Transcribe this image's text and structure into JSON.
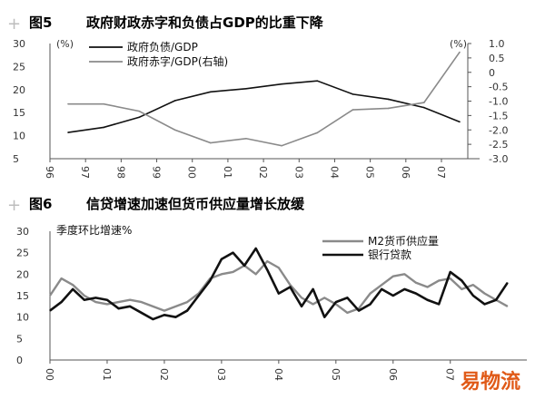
{
  "colors": {
    "black_series": "#111111",
    "gray_series": "#8a8a8a",
    "axis": "#555555",
    "watermark": "#e05a18",
    "plus_mark": "#bdbdbd"
  },
  "chart_data": [
    {
      "type": "line",
      "figure_no": "图5",
      "title": "政府财政赤字和负债占GDP的比重下降",
      "left_unit": "(%)",
      "right_unit": "(%)",
      "ylim": [
        5,
        30
      ],
      "yticks": [
        "5",
        "10",
        "15",
        "20",
        "25",
        "30"
      ],
      "y2lim": [
        -3.0,
        1.0
      ],
      "y2ticks": [
        "-3.0",
        "-2.5",
        "-2.0",
        "-1.5",
        "-1.0",
        "-0.5",
        "0",
        "0.5",
        "1.0"
      ],
      "x": [
        "96",
        "97",
        "98",
        "99",
        "00",
        "01",
        "02",
        "03",
        "04",
        "05",
        "06",
        "07"
      ],
      "xticks": [
        "96",
        "97",
        "98",
        "99",
        "00",
        "01",
        "02",
        "03",
        "04",
        "05",
        "06",
        "07"
      ],
      "legend_position": "top-left",
      "series": [
        {
          "name": "政府负债/GDP",
          "axis": "left",
          "color": "#111111",
          "values": [
            10.7,
            11.8,
            14.0,
            17.6,
            19.5,
            20.2,
            21.2,
            21.9,
            19.0,
            17.9,
            16.1,
            13.0
          ]
        },
        {
          "name": "政府赤字/GDP(右轴)",
          "axis": "right",
          "color": "#8a8a8a",
          "values": [
            -1.1,
            -1.1,
            -1.35,
            -2.0,
            -2.45,
            -2.3,
            -2.55,
            -2.1,
            -1.3,
            -1.25,
            -1.05,
            0.7
          ]
        }
      ]
    },
    {
      "type": "line",
      "figure_no": "图6",
      "title": "信贷增速加速但货币供应量增长放缓",
      "ylabel": "季度环比增速%",
      "ylim": [
        0,
        30
      ],
      "yticks": [
        "0",
        "5",
        "10",
        "15",
        "20",
        "25",
        "30"
      ],
      "xlim": [
        2000,
        2008.1
      ],
      "xticks": [
        "00",
        "01",
        "02",
        "03",
        "04",
        "05",
        "06",
        "07"
      ],
      "xtick_positions": [
        2000,
        2001,
        2002,
        2003,
        2004,
        2005,
        2006,
        2007
      ],
      "legend_position": "top-right",
      "series": [
        {
          "name": "M2货币供应量",
          "color": "#8a8a8a",
          "x": [
            2000.0,
            2000.2,
            2000.4,
            2000.6,
            2000.8,
            2001.0,
            2001.2,
            2001.4,
            2001.6,
            2001.8,
            2002.0,
            2002.2,
            2002.4,
            2002.6,
            2002.8,
            2003.0,
            2003.2,
            2003.4,
            2003.6,
            2003.8,
            2004.0,
            2004.2,
            2004.4,
            2004.6,
            2004.8,
            2005.0,
            2005.2,
            2005.4,
            2005.6,
            2005.8,
            2006.0,
            2006.2,
            2006.4,
            2006.6,
            2006.8,
            2007.0,
            2007.2,
            2007.4,
            2007.6,
            2007.8,
            2008.0
          ],
          "values": [
            15.0,
            19.0,
            17.5,
            15.0,
            13.5,
            13.0,
            13.5,
            14.0,
            13.5,
            12.5,
            11.5,
            12.5,
            13.5,
            15.5,
            19.0,
            20.0,
            20.5,
            22.0,
            20.0,
            23.0,
            21.5,
            17.5,
            14.5,
            13.0,
            14.5,
            13.0,
            11.0,
            12.0,
            15.5,
            17.5,
            19.5,
            20.0,
            18.0,
            17.0,
            18.5,
            19.0,
            16.5,
            17.5,
            15.5,
            14.0,
            12.5
          ]
        },
        {
          "name": "银行贷款",
          "color": "#111111",
          "x": [
            2000.0,
            2000.2,
            2000.4,
            2000.6,
            2000.8,
            2001.0,
            2001.2,
            2001.4,
            2001.6,
            2001.8,
            2002.0,
            2002.2,
            2002.4,
            2002.6,
            2002.8,
            2003.0,
            2003.2,
            2003.4,
            2003.6,
            2003.8,
            2004.0,
            2004.2,
            2004.4,
            2004.6,
            2004.8,
            2005.0,
            2005.2,
            2005.4,
            2005.6,
            2005.8,
            2006.0,
            2006.2,
            2006.4,
            2006.6,
            2006.8,
            2007.0,
            2007.2,
            2007.4,
            2007.6,
            2007.8,
            2008.0
          ],
          "values": [
            11.5,
            13.5,
            16.5,
            14.0,
            14.5,
            14.0,
            12.0,
            12.5,
            11.0,
            9.5,
            10.5,
            10.0,
            11.5,
            15.0,
            18.5,
            23.5,
            25.0,
            22.0,
            26.0,
            21.0,
            15.5,
            17.0,
            12.5,
            16.5,
            10.0,
            13.5,
            14.5,
            11.5,
            13.0,
            16.5,
            15.0,
            16.5,
            15.5,
            14.0,
            13.0,
            20.5,
            18.5,
            15.0,
            13.0,
            14.0,
            18.0
          ]
        }
      ]
    }
  ],
  "watermark": {
    "text": "易物流"
  }
}
